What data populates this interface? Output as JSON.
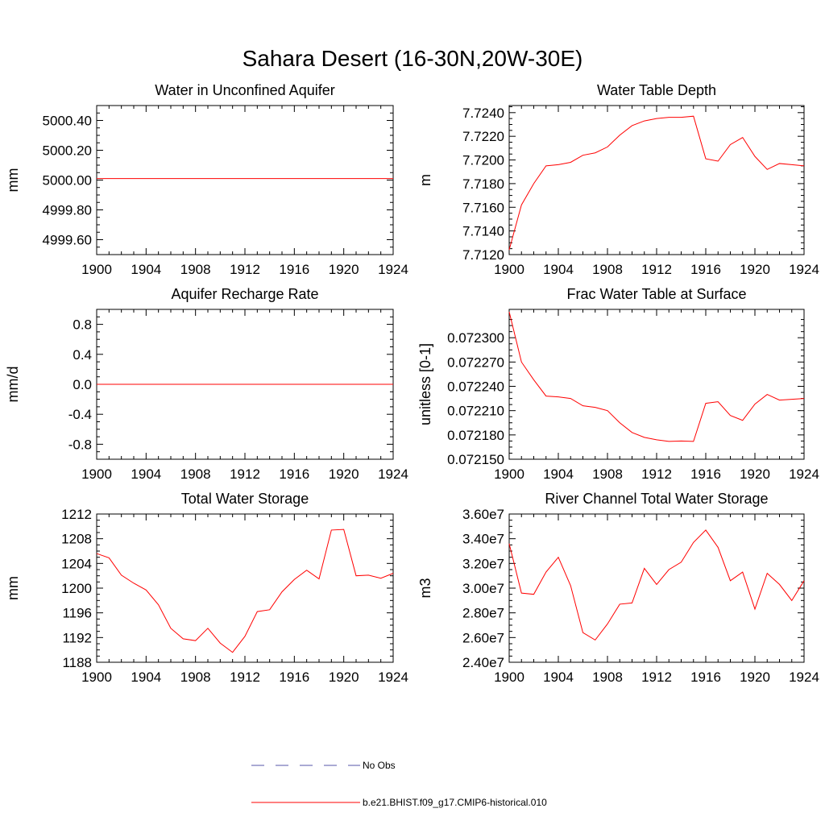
{
  "figure": {
    "title": "Sahara Desert (16-30N,20W-30E)"
  },
  "legend": {
    "items": [
      {
        "label": "No Obs",
        "style": "dashed",
        "color": "#5555aa"
      },
      {
        "label": "b.e21.BHIST.f09_g17.CMIP6-historical.010",
        "style": "solid",
        "color": "#ff0000"
      }
    ]
  },
  "chart_data": [
    {
      "type": "line",
      "title": "Water in Unconfined Aquifer",
      "xlabel": "",
      "ylabel": "mm",
      "xlim": [
        1900,
        1924
      ],
      "ylim": [
        4999.5,
        5000.5
      ],
      "xticks": [
        "1900",
        "1904",
        "1908",
        "1912",
        "1916",
        "1920",
        "1924"
      ],
      "yticks": [
        "4999.60",
        "4999.80",
        "5000.00",
        "5000.20",
        "5000.40"
      ],
      "x": [
        1900,
        1901,
        1902,
        1903,
        1904,
        1905,
        1906,
        1907,
        1908,
        1909,
        1910,
        1911,
        1912,
        1913,
        1914,
        1915,
        1916,
        1917,
        1918,
        1919,
        1920,
        1921,
        1922,
        1923,
        1924
      ],
      "series": [
        {
          "color": "#ff0000",
          "values": [
            5000.01,
            5000.01,
            5000.01,
            5000.01,
            5000.01,
            5000.01,
            5000.01,
            5000.01,
            5000.01,
            5000.01,
            5000.01,
            5000.01,
            5000.01,
            5000.01,
            5000.01,
            5000.01,
            5000.01,
            5000.01,
            5000.01,
            5000.01,
            5000.01,
            5000.01,
            5000.01,
            5000.01,
            5000.01
          ]
        }
      ]
    },
    {
      "type": "line",
      "title": "Water Table Depth",
      "xlabel": "",
      "ylabel": "m",
      "xlim": [
        1900,
        1924
      ],
      "ylim": [
        7.712,
        7.7246
      ],
      "xticks": [
        "1900",
        "1904",
        "1908",
        "1912",
        "1916",
        "1920",
        "1924"
      ],
      "yticks": [
        "7.7120",
        "7.7140",
        "7.7160",
        "7.7180",
        "7.7200",
        "7.7220",
        "7.7240"
      ],
      "x": [
        1900,
        1901,
        1902,
        1903,
        1904,
        1905,
        1906,
        1907,
        1908,
        1909,
        1910,
        1911,
        1912,
        1913,
        1914,
        1915,
        1916,
        1917,
        1918,
        1919,
        1920,
        1921,
        1922,
        1923,
        1924
      ],
      "series": [
        {
          "color": "#ff0000",
          "values": [
            7.7124,
            7.7162,
            7.718,
            7.7195,
            7.7196,
            7.7198,
            7.7204,
            7.7206,
            7.7211,
            7.7221,
            7.7229,
            7.7233,
            7.7235,
            7.7236,
            7.7236,
            7.7237,
            7.7201,
            7.7199,
            7.7213,
            7.7219,
            7.7203,
            7.7192,
            7.7197,
            7.7196,
            7.7195
          ]
        }
      ]
    },
    {
      "type": "line",
      "title": "Aquifer Recharge Rate",
      "xlabel": "",
      "ylabel": "mm/d",
      "xlim": [
        1900,
        1924
      ],
      "ylim": [
        -1.0,
        1.0
      ],
      "xticks": [
        "1900",
        "1904",
        "1908",
        "1912",
        "1916",
        "1920",
        "1924"
      ],
      "yticks": [
        "-0.8",
        "-0.4",
        "0.0",
        "0.4",
        "0.8"
      ],
      "x": [
        1900,
        1901,
        1902,
        1903,
        1904,
        1905,
        1906,
        1907,
        1908,
        1909,
        1910,
        1911,
        1912,
        1913,
        1914,
        1915,
        1916,
        1917,
        1918,
        1919,
        1920,
        1921,
        1922,
        1923,
        1924
      ],
      "series": [
        {
          "color": "#ff0000",
          "values": [
            0,
            0,
            0,
            0,
            0,
            0,
            0,
            0,
            0,
            0,
            0,
            0,
            0,
            0,
            0,
            0,
            0,
            0,
            0,
            0,
            0,
            0,
            0,
            0,
            0
          ]
        }
      ]
    },
    {
      "type": "line",
      "title": "Frac Water Table at Surface",
      "xlabel": "",
      "ylabel": "unitless [0-1]",
      "xlim": [
        1900,
        1924
      ],
      "ylim": [
        0.07215,
        0.072335
      ],
      "xticks": [
        "1900",
        "1904",
        "1908",
        "1912",
        "1916",
        "1920",
        "1924"
      ],
      "yticks": [
        "0.072150",
        "0.072180",
        "0.072210",
        "0.072240",
        "0.072270",
        "0.072300"
      ],
      "x": [
        1900,
        1901,
        1902,
        1903,
        1904,
        1905,
        1906,
        1907,
        1908,
        1909,
        1910,
        1911,
        1912,
        1913,
        1914,
        1915,
        1916,
        1917,
        1918,
        1919,
        1920,
        1921,
        1922,
        1923,
        1924
      ],
      "series": [
        {
          "color": "#ff0000",
          "values": [
            0.072332,
            0.07227,
            0.072248,
            0.072228,
            0.072227,
            0.072225,
            0.072216,
            0.072214,
            0.07221,
            0.072195,
            0.072183,
            0.072177,
            0.072174,
            0.072172,
            0.0721725,
            0.072172,
            0.072219,
            0.072221,
            0.072204,
            0.072198,
            0.072218,
            0.07223,
            0.072223,
            0.072224,
            0.072225
          ]
        }
      ]
    },
    {
      "type": "line",
      "title": "Total Water Storage",
      "xlabel": "",
      "ylabel": "mm",
      "xlim": [
        1900,
        1924
      ],
      "ylim": [
        1188,
        1212
      ],
      "xticks": [
        "1900",
        "1904",
        "1908",
        "1912",
        "1916",
        "1920",
        "1924"
      ],
      "yticks": [
        "1188",
        "1192",
        "1196",
        "1200",
        "1204",
        "1208",
        "1212"
      ],
      "x": [
        1900,
        1901,
        1902,
        1903,
        1904,
        1905,
        1906,
        1907,
        1908,
        1909,
        1910,
        1911,
        1912,
        1913,
        1914,
        1915,
        1916,
        1917,
        1918,
        1919,
        1920,
        1921,
        1922,
        1923,
        1924
      ],
      "series": [
        {
          "color": "#ff0000",
          "values": [
            1205.6,
            1204.9,
            1202.1,
            1200.8,
            1199.7,
            1197.3,
            1193.5,
            1191.8,
            1191.5,
            1193.5,
            1191.1,
            1189.6,
            1192.2,
            1196.2,
            1196.5,
            1199.4,
            1201.4,
            1202.9,
            1201.5,
            1209.4,
            1209.5,
            1202.0,
            1202.1,
            1201.6,
            1202.4
          ]
        }
      ]
    },
    {
      "type": "line",
      "title": "River Channel Total Water Storage",
      "xlabel": "",
      "ylabel": "m3",
      "xlim": [
        1900,
        1924
      ],
      "ylim": [
        24000000,
        36000000
      ],
      "xticks": [
        "1900",
        "1904",
        "1908",
        "1912",
        "1916",
        "1920",
        "1924"
      ],
      "yticks": [
        "2.40e7",
        "2.60e7",
        "2.80e7",
        "3.00e7",
        "3.20e7",
        "3.40e7",
        "3.60e7"
      ],
      "x": [
        1900,
        1901,
        1902,
        1903,
        1904,
        1905,
        1906,
        1907,
        1908,
        1909,
        1910,
        1911,
        1912,
        1913,
        1914,
        1915,
        1916,
        1917,
        1918,
        1919,
        1920,
        1921,
        1922,
        1923,
        1924
      ],
      "series": [
        {
          "color": "#ff0000",
          "values": [
            33600000,
            29600000,
            29500000,
            31300000,
            32500000,
            30200000,
            26400000,
            25800000,
            27100000,
            28700000,
            28800000,
            31600000,
            30300000,
            31500000,
            32100000,
            33700000,
            34700000,
            33300000,
            30600000,
            31300000,
            28300000,
            31200000,
            30300000,
            29000000,
            30600000
          ]
        }
      ]
    }
  ]
}
